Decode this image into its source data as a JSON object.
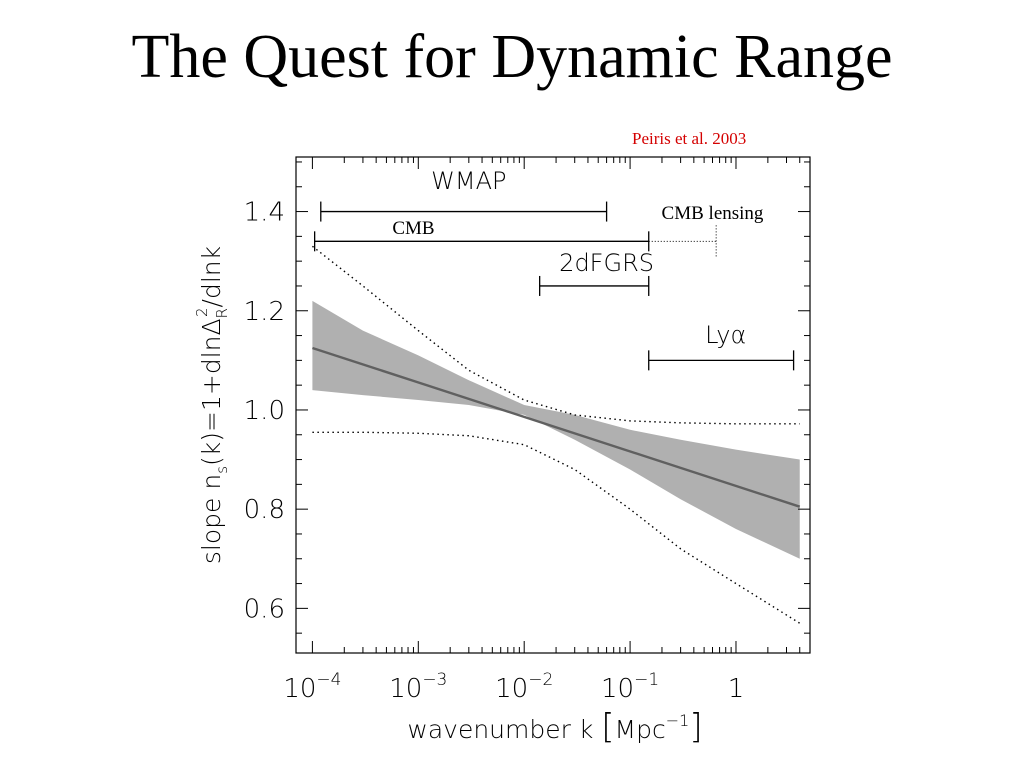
{
  "slide": {
    "title": "The Quest for Dynamic Range",
    "citation": "Peiris et al. 2003",
    "citation_color": "#d40000"
  },
  "chart_data": {
    "type": "line",
    "xscale": "log",
    "xlim": [
      7e-05,
      5
    ],
    "ylim": [
      0.51,
      1.51
    ],
    "x_ticks": [
      0.0001,
      0.001,
      0.01,
      0.1,
      1
    ],
    "x_tick_labels": [
      {
        "base": "10",
        "exp": "−4"
      },
      {
        "base": "10",
        "exp": "−3"
      },
      {
        "base": "10",
        "exp": "−2"
      },
      {
        "base": "10",
        "exp": "−1"
      },
      {
        "base": "1",
        "exp": ""
      }
    ],
    "y_ticks": [
      0.6,
      0.8,
      1.0,
      1.2,
      1.4
    ],
    "y_tick_labels": [
      "0.6",
      "0.8",
      "1.0",
      "1.2",
      "1.4"
    ],
    "xlabel": {
      "text": "wavenumber k ",
      "unit_open": "[",
      "unit": "Mpc",
      "unit_exp": "−1",
      "unit_close": "]"
    },
    "ylabel": {
      "p1": "slope n",
      "p1_sub": "s",
      "p2": "(k)=1+dlnΔ",
      "p2_sub": "R",
      "p2_sup": "2",
      "p3": "/dlnk"
    },
    "band": {
      "color": "#b0b0b0",
      "x": [
        0.0001,
        0.0003,
        0.001,
        0.003,
        0.01,
        0.03,
        0.1,
        0.3,
        1,
        4
      ],
      "upper": [
        1.22,
        1.16,
        1.11,
        1.06,
        1.01,
        0.99,
        0.96,
        0.94,
        0.92,
        0.9
      ],
      "lower": [
        1.04,
        1.03,
        1.02,
        1.01,
        0.99,
        0.94,
        0.88,
        0.82,
        0.76,
        0.7
      ]
    },
    "series": [
      {
        "role": "best-fit",
        "style": "solid",
        "color": "#606060",
        "x": [
          0.0001,
          4
        ],
        "y": [
          1.125,
          0.805
        ]
      },
      {
        "role": "upper-envelope",
        "style": "dotted",
        "color": "#000000",
        "x": [
          0.0001,
          0.0003,
          0.001,
          0.003,
          0.01,
          0.03,
          0.1,
          0.3,
          1,
          4
        ],
        "y": [
          1.33,
          1.25,
          1.16,
          1.08,
          1.02,
          0.99,
          0.978,
          0.974,
          0.972,
          0.972
        ]
      },
      {
        "role": "lower-envelope",
        "style": "dotted",
        "color": "#000000",
        "x": [
          0.0001,
          0.0003,
          0.001,
          0.003,
          0.01,
          0.03,
          0.1,
          0.3,
          1,
          4
        ],
        "y": [
          0.955,
          0.955,
          0.953,
          0.948,
          0.93,
          0.88,
          0.8,
          0.72,
          0.65,
          0.57
        ]
      }
    ],
    "ranges": [
      {
        "label": "WMAP",
        "x": [
          0.00012,
          0.06
        ],
        "y": 1.4,
        "font": "sans",
        "label_x": 0.003,
        "label_y": 1.445
      },
      {
        "label": "CMB",
        "x": [
          0.000105,
          0.15
        ],
        "y": 1.34,
        "font": "serif",
        "label_x": 0.0009,
        "label_y": 1.355
      },
      {
        "label": "2dFGRS",
        "x": [
          0.014,
          0.15
        ],
        "y": 1.25,
        "font": "sans",
        "label_x": 0.06,
        "label_y": 1.28
      },
      {
        "label": "Lyα",
        "x": [
          0.15,
          3.5
        ],
        "y": 1.1,
        "font": "sans",
        "label_x": 0.8,
        "label_y": 1.135
      }
    ],
    "dotted_range": {
      "label": "CMB lensing",
      "x": [
        0.15,
        0.65
      ],
      "y": 1.34,
      "label_x": 0.6,
      "label_y": 1.385
    }
  }
}
